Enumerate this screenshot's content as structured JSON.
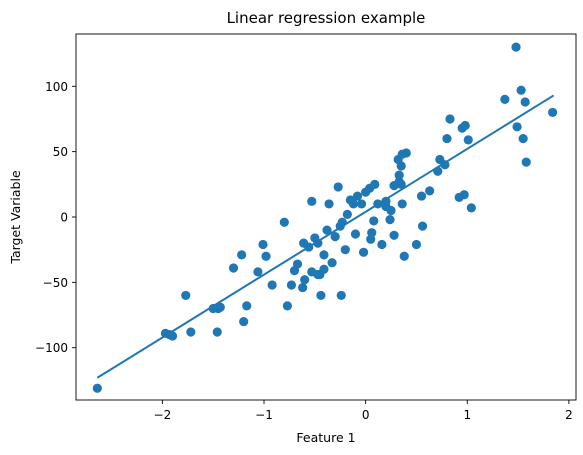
{
  "chart_data": {
    "type": "scatter",
    "title": "Linear regression example",
    "xlabel": "Feature 1",
    "ylabel": "Target Variable",
    "xlim": [
      -2.85,
      2.07
    ],
    "ylim": [
      -140,
      140
    ],
    "xticks": [
      {
        "value": -2,
        "label": "−2"
      },
      {
        "value": -1,
        "label": "−1"
      },
      {
        "value": 0,
        "label": "0"
      },
      {
        "value": 1,
        "label": "1"
      },
      {
        "value": 2,
        "label": "2"
      }
    ],
    "yticks": [
      {
        "value": -100,
        "label": "−100"
      },
      {
        "value": -50,
        "label": "−50"
      },
      {
        "value": 0,
        "label": "0"
      },
      {
        "value": 50,
        "label": "50"
      },
      {
        "value": 100,
        "label": "100"
      }
    ],
    "grid": false,
    "legend": "none",
    "colors": {
      "points": "#1f77b4",
      "line": "#1f77b4"
    },
    "fit_line": {
      "x": [
        -2.64,
        1.85
      ],
      "y": [
        -123,
        93
      ]
    },
    "points": {
      "x": [
        -2.64,
        -1.97,
        -1.93,
        -1.9,
        -1.77,
        -1.72,
        -1.5,
        -1.46,
        -1.43,
        -1.45,
        -1.3,
        -1.22,
        -1.2,
        -1.17,
        -1.01,
        -0.98,
        -1.06,
        -0.92,
        -0.8,
        -0.77,
        -0.73,
        -0.7,
        -0.67,
        -0.62,
        -0.6,
        -0.56,
        -0.53,
        -0.5,
        -0.47,
        -0.45,
        -0.41,
        -0.38,
        -0.33,
        -0.3,
        -0.27,
        -0.25,
        -0.23,
        -0.2,
        -0.18,
        -0.15,
        -0.12,
        -0.1,
        -0.08,
        -0.04,
        0.0,
        0.04,
        0.08,
        0.12,
        0.16,
        0.2,
        0.25,
        0.28,
        0.32,
        0.36,
        -0.44,
        -0.61,
        -0.47,
        -0.53,
        -0.36,
        -0.41,
        -0.24,
        0.33,
        0.35,
        0.4,
        0.33,
        0.36,
        0.73,
        0.8,
        0.83,
        0.95,
        0.98,
        1.01,
        0.97,
        1.04,
        0.92,
        1.37,
        1.48,
        1.53,
        1.57,
        1.84,
        1.55,
        1.49,
        1.58,
        0.63,
        0.78,
        0.55,
        0.09,
        0.2,
        0.05,
        0.28,
        0.38,
        0.06,
        -0.02,
        0.56,
        0.5,
        0.24,
        0.35,
        0.71
      ],
      "y": [
        -131,
        -89,
        -90,
        -91,
        -60,
        -88,
        -70,
        -88,
        -69,
        -70,
        -39,
        -29,
        -80,
        -68,
        -21,
        -30,
        -42,
        -52,
        -4,
        -68,
        -52,
        -41,
        -36,
        -54,
        -48,
        -23,
        -42,
        -16,
        -20,
        -44,
        -29,
        -10,
        -35,
        -15,
        23,
        -7,
        -4,
        -25,
        2,
        13,
        10,
        -13,
        16,
        10,
        19,
        22,
        -3,
        10,
        -21,
        12,
        5,
        24,
        44,
        48,
        -60,
        -20,
        -44,
        12,
        10,
        -40,
        -60,
        27,
        39,
        49,
        32,
        10,
        44,
        60,
        75,
        68,
        70,
        59,
        17,
        7,
        15,
        90,
        130,
        97,
        88,
        80,
        60,
        69,
        42,
        20,
        40,
        16,
        25,
        8,
        -17,
        -14,
        -30,
        -12,
        -27,
        -7,
        -21,
        -2,
        25,
        35
      ]
    }
  }
}
